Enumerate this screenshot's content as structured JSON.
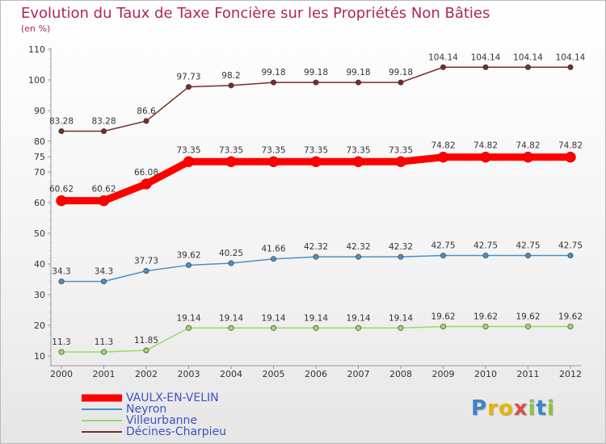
{
  "chart_data": {
    "type": "line",
    "title": "Evolution du Taux de Taxe Foncière sur les Propriétés Non Bâties",
    "subtitle": "(en %)",
    "categories": [
      "2000",
      "2001",
      "2002",
      "2003",
      "2004",
      "2005",
      "2006",
      "2007",
      "2008",
      "2009",
      "2010",
      "2011",
      "2012"
    ],
    "yticks": [
      "10",
      "20",
      "30",
      "40",
      "50",
      "60",
      "70",
      "75",
      "80",
      "90",
      "100",
      "110"
    ],
    "grid": false,
    "legend_position": "bottom-left",
    "series": [
      {
        "name": "VAULX-EN-VELIN",
        "color": "#ff0000",
        "values": [
          60.62,
          60.62,
          66.08,
          73.35,
          73.35,
          73.35,
          73.35,
          73.35,
          73.35,
          74.82,
          74.82,
          74.82,
          74.82
        ],
        "labels": [
          "60.62",
          "60.62",
          "66.08",
          "73.35",
          "73.35",
          "73.35",
          "73.35",
          "73.35",
          "73.35",
          "74.82",
          "74.82",
          "74.82",
          "74.82"
        ]
      },
      {
        "name": "Neyron",
        "color": "#4d8fc6",
        "values": [
          34.3,
          34.3,
          37.73,
          39.62,
          40.25,
          41.66,
          42.32,
          42.32,
          42.32,
          42.75,
          42.75,
          42.75,
          42.75
        ],
        "labels": [
          "34.3",
          "34.3",
          "37.73",
          "39.62",
          "40.25",
          "41.66",
          "42.32",
          "42.32",
          "42.32",
          "42.75",
          "42.75",
          "42.75",
          "42.75"
        ]
      },
      {
        "name": "Villeurbanne",
        "color": "#99d96c",
        "values": [
          11.3,
          11.3,
          11.85,
          19.14,
          19.14,
          19.14,
          19.14,
          19.14,
          19.14,
          19.62,
          19.62,
          19.62,
          19.62
        ],
        "labels": [
          "11.3",
          "11.3",
          "11.85",
          "19.14",
          "19.14",
          "19.14",
          "19.14",
          "19.14",
          "19.14",
          "19.62",
          "19.62",
          "19.62",
          "19.62"
        ]
      },
      {
        "name": "Décines-Charpieu",
        "color": "#7a2b2b",
        "values": [
          83.28,
          83.28,
          86.6,
          97.73,
          98.2,
          99.18,
          99.18,
          99.18,
          99.18,
          104.14,
          104.14,
          104.14,
          104.14
        ],
        "labels": [
          "83.28",
          "83.28",
          "86.6",
          "97.73",
          "98.2",
          "99.18",
          "99.18",
          "99.18",
          "99.18",
          "104.14",
          "104.14",
          "104.14",
          "104.14"
        ]
      }
    ]
  },
  "brand": {
    "letters": [
      {
        "char": "P",
        "color": "#3a86c8"
      },
      {
        "char": "r",
        "color": "#e8b400"
      },
      {
        "char": "o",
        "color": "#e8b400"
      },
      {
        "char": "x",
        "color": "#e14b4b"
      },
      {
        "char": "i",
        "color": "#8ac43f"
      },
      {
        "char": "t",
        "color": "#3a86c8"
      },
      {
        "char": "i",
        "color": "#8ac43f"
      }
    ]
  }
}
